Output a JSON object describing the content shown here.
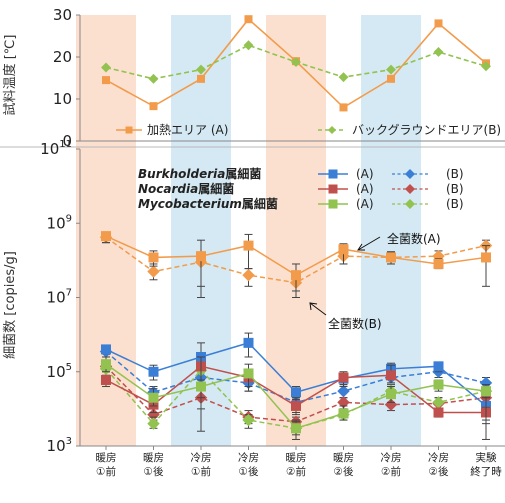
{
  "chart_data": [
    {
      "type": "line",
      "ylabel": "試料温度 [℃]",
      "ylim": [
        0,
        30
      ],
      "yticks": [
        "0",
        "10",
        "20",
        "30"
      ],
      "categories": [
        "暖房①前",
        "暖房①後",
        "冷房①前",
        "冷房①後",
        "暖房②前",
        "暖房②後",
        "冷房②前",
        "冷房②後",
        "実験終了時"
      ],
      "series": [
        {
          "name": "加熱エリア (A)",
          "values": [
            14.5,
            8.3,
            14.8,
            29,
            19,
            8,
            14.8,
            28,
            18.5
          ],
          "color": "#f29b4b",
          "dash": "solid",
          "marker": "square"
        },
        {
          "name": "バックグラウンドエリア(B)",
          "values": [
            17.5,
            14.8,
            17,
            22.8,
            18.8,
            15.2,
            17,
            21.2,
            17.8
          ],
          "color": "#92c24f",
          "dash": "dashed",
          "marker": "diamond"
        }
      ],
      "legend_position": "bottom"
    },
    {
      "type": "line",
      "ylabel": "細菌数 [copies/g]",
      "yscale": "log",
      "ylim": [
        1000,
        100000000000
      ],
      "yticks": [
        {
          "base": "10",
          "exp": "3"
        },
        {
          "base": "10",
          "exp": "5"
        },
        {
          "base": "10",
          "exp": "7"
        },
        {
          "base": "10",
          "exp": "9"
        },
        {
          "base": "10",
          "exp": "11"
        }
      ],
      "categories": [
        "暖房①前",
        "暖房①後",
        "冷房①前",
        "冷房①後",
        "暖房②前",
        "暖房②後",
        "冷房②前",
        "冷房②後",
        "実験終了時"
      ],
      "xtick_lines": [
        [
          "暖房",
          "①前"
        ],
        [
          "暖房",
          "①後"
        ],
        [
          "冷房",
          "①前"
        ],
        [
          "冷房",
          "①後"
        ],
        [
          "暖房",
          "②前"
        ],
        [
          "暖房",
          "②後"
        ],
        [
          "冷房",
          "②前"
        ],
        [
          "冷房",
          "②後"
        ],
        [
          "実験",
          "終了時"
        ]
      ],
      "legend": {
        "titles": [
          {
            "italic": "Burkholderia",
            "suffix": "属細菌"
          },
          {
            "italic": "Nocardia",
            "suffix": "属細菌"
          },
          {
            "italic": "Mycobacterium",
            "suffix": "属細菌"
          }
        ],
        "a_label": "(A)",
        "b_label": "(B)"
      },
      "annotations": [
        {
          "text": "全菌数(A)"
        },
        {
          "text": "全菌数(B)"
        }
      ],
      "series": [
        {
          "name": "全菌数(A)",
          "color": "#f29b4b",
          "dash": "solid",
          "marker": "square",
          "values": [
            450000000,
            120000000,
            130000000,
            250000000,
            40000000,
            200000000,
            120000000,
            80000000,
            120000000
          ],
          "err_low": [
            300000000,
            70000000,
            20000000,
            60000000,
            10000000,
            80000000,
            80000000,
            60000000,
            20000000
          ],
          "err_high": [
            550000000,
            180000000,
            350000000,
            500000000,
            80000000,
            280000000,
            170000000,
            110000000,
            250000000
          ]
        },
        {
          "name": "全菌数(B)",
          "color": "#f29b4b",
          "dash": "dashed",
          "marker": "diamond",
          "values": [
            420000000,
            50000000,
            90000000,
            40000000,
            25000000,
            130000000,
            120000000,
            130000000,
            250000000
          ],
          "err_low": [
            300000000,
            30000000,
            10000000,
            20000000,
            15000000,
            80000000,
            80000000,
            90000000,
            150000000
          ],
          "err_high": [
            550000000,
            80000000,
            150000000,
            60000000,
            40000000,
            180000000,
            170000000,
            180000000,
            350000000
          ]
        },
        {
          "name": "Burkholderia (A)",
          "color": "#3b7ed6",
          "dash": "solid",
          "marker": "square",
          "values": [
            400000,
            100000,
            250000,
            600000,
            28000,
            65000,
            120000,
            140000,
            12000
          ],
          "err_low": [
            300000,
            60000,
            150000,
            250000,
            18000,
            45000,
            80000,
            100000,
            4000
          ],
          "err_high": [
            500000,
            150000,
            600000,
            1100000,
            40000,
            80000,
            170000,
            180000,
            20000
          ]
        },
        {
          "name": "Burkholderia (B)",
          "color": "#3b7ed6",
          "dash": "dashed",
          "marker": "diamond",
          "values": [
            350000,
            28000,
            70000,
            50000,
            15000,
            30000,
            70000,
            100000,
            50000
          ],
          "err_low": [
            250000,
            18000,
            40000,
            30000,
            8000,
            20000,
            50000,
            70000,
            35000
          ],
          "err_high": [
            450000,
            40000,
            100000,
            70000,
            20000,
            45000,
            100000,
            130000,
            70000
          ]
        },
        {
          "name": "Nocardia (A)",
          "color": "#c0504d",
          "dash": "solid",
          "marker": "square",
          "values": [
            60000,
            13000,
            140000,
            70000,
            12000,
            70000,
            80000,
            8000,
            8000
          ],
          "err_low": [
            40000,
            8000,
            60000,
            40000,
            7000,
            40000,
            50000,
            6000,
            5000
          ],
          "err_high": [
            80000,
            20000,
            250000,
            100000,
            20000,
            100000,
            150000,
            10000,
            11000
          ]
        },
        {
          "name": "Nocardia (B)",
          "color": "#c0504d",
          "dash": "dashed",
          "marker": "diamond",
          "values": [
            140000,
            7000,
            20000,
            6000,
            4500,
            15000,
            13000,
            14000,
            20000
          ],
          "err_low": [
            100000,
            5000,
            10000,
            4000,
            3500,
            10000,
            9000,
            10000,
            10000
          ],
          "err_high": [
            200000,
            10000,
            40000,
            9000,
            6000,
            20000,
            20000,
            20000,
            30000
          ]
        },
        {
          "name": "Mycobacterium (A)",
          "color": "#92c24f",
          "dash": "solid",
          "marker": "square",
          "values": [
            160000,
            20000,
            40000,
            90000,
            3000,
            7500,
            25000,
            45000,
            30000
          ],
          "err_low": [
            100000,
            12000,
            2500,
            30000,
            1500,
            5000,
            15000,
            30000,
            1500
          ],
          "err_high": [
            250000,
            35000,
            250000,
            160000,
            5000,
            12000,
            40000,
            60000,
            45000
          ]
        },
        {
          "name": "Mycobacterium (B)",
          "color": "#92c24f",
          "dash": "dashed",
          "marker": "diamond",
          "values": [
            120000,
            4000,
            110000,
            5000,
            3000,
            7000,
            30000,
            15000,
            30000
          ],
          "err_low": [
            80000,
            3000,
            20000,
            3000,
            2000,
            5000,
            20000,
            10000,
            20000
          ],
          "err_high": [
            180000,
            6000,
            200000,
            7000,
            4500,
            10000,
            45000,
            20000,
            45000
          ]
        }
      ],
      "shading": [
        {
          "index": 0,
          "color": "#fbe0cf"
        },
        {
          "index": 2,
          "color": "#d4e9f3"
        },
        {
          "index": 4,
          "color": "#fbe0cf"
        },
        {
          "index": 6,
          "color": "#d4e9f3"
        }
      ]
    }
  ]
}
